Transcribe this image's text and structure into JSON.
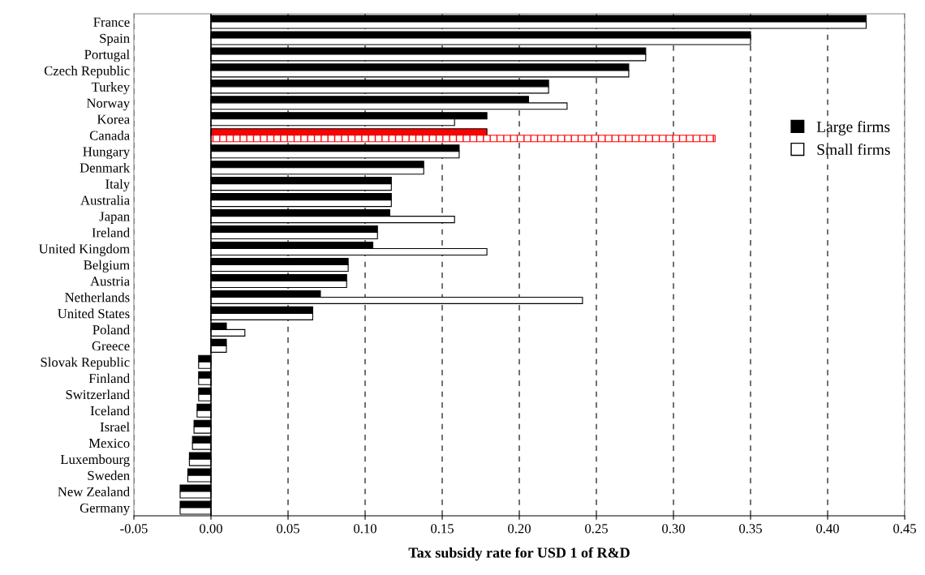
{
  "chart_data": {
    "type": "bar",
    "orientation": "horizontal",
    "xlabel": "Tax subsidy rate for USD 1 of R&D",
    "categories": [
      "France",
      "Spain",
      "Portugal",
      "Czech Republic",
      "Turkey",
      "Norway",
      "Korea",
      "Canada",
      "Hungary",
      "Denmark",
      "Italy",
      "Australia",
      "Japan",
      "Ireland",
      "United Kingdom",
      "Belgium",
      "Austria",
      "Netherlands",
      "United States",
      "Poland",
      "Greece",
      "Slovak Republic",
      "Finland",
      "Switzerland",
      "Iceland",
      "Israel",
      "Mexico",
      "Luxembourg",
      "Sweden",
      "New Zealand",
      "Germany"
    ],
    "series": [
      {
        "name": "Large firms",
        "color": "#000000",
        "colors": [
          "#000000",
          "#000000",
          "#000000",
          "#000000",
          "#000000",
          "#000000",
          "#000000",
          "#ff0000",
          "#000000",
          "#000000",
          "#000000",
          "#000000",
          "#000000",
          "#000000",
          "#000000",
          "#000000",
          "#000000",
          "#000000",
          "#000000",
          "#000000",
          "#000000",
          "#000000",
          "#000000",
          "#000000",
          "#000000",
          "#000000",
          "#000000",
          "#000000",
          "#000000",
          "#000000",
          "#000000"
        ],
        "values": [
          0.425,
          0.35,
          0.282,
          0.271,
          0.219,
          0.206,
          0.179,
          0.179,
          0.161,
          0.138,
          0.117,
          0.117,
          0.116,
          0.108,
          0.105,
          0.089,
          0.088,
          0.071,
          0.066,
          0.01,
          0.01,
          -0.008,
          -0.008,
          -0.008,
          -0.009,
          -0.011,
          -0.012,
          -0.014,
          -0.015,
          -0.02,
          -0.02
        ]
      },
      {
        "name": "Small firms",
        "color": "#ffffff",
        "colors": [
          "#ffffff",
          "#ffffff",
          "#ffffff",
          "#ffffff",
          "#ffffff",
          "#ffffff",
          "#ffffff",
          "#ff0000",
          "#ffffff",
          "#ffffff",
          "#ffffff",
          "#ffffff",
          "#ffffff",
          "#ffffff",
          "#ffffff",
          "#ffffff",
          "#ffffff",
          "#ffffff",
          "#ffffff",
          "#ffffff",
          "#ffffff",
          "#ffffff",
          "#ffffff",
          "#ffffff",
          "#ffffff",
          "#ffffff",
          "#ffffff",
          "#ffffff",
          "#ffffff",
          "#ffffff",
          "#ffffff"
        ],
        "values": [
          0.425,
          0.35,
          0.282,
          0.271,
          0.219,
          0.231,
          0.158,
          0.327,
          0.161,
          0.138,
          0.117,
          0.117,
          0.158,
          0.108,
          0.179,
          0.089,
          0.088,
          0.241,
          0.066,
          0.022,
          0.01,
          -0.008,
          -0.008,
          -0.008,
          -0.009,
          -0.011,
          -0.012,
          -0.014,
          -0.015,
          -0.02,
          -0.02
        ]
      }
    ],
    "xlim": [
      -0.05,
      0.45
    ],
    "xticks": [
      {
        "value": -0.05,
        "label": "-0.05"
      },
      {
        "value": 0.0,
        "label": "0.00"
      },
      {
        "value": 0.05,
        "label": "0.05"
      },
      {
        "value": 0.1,
        "label": "0.10"
      },
      {
        "value": 0.15,
        "label": "0.15"
      },
      {
        "value": 0.2,
        "label": "0.20"
      },
      {
        "value": 0.25,
        "label": "0.25"
      },
      {
        "value": 0.3,
        "label": "0.30"
      },
      {
        "value": 0.35,
        "label": "0.35"
      },
      {
        "value": 0.4,
        "label": "0.40"
      },
      {
        "value": 0.45,
        "label": "0.45"
      }
    ],
    "grid": "x",
    "legend": "right"
  }
}
